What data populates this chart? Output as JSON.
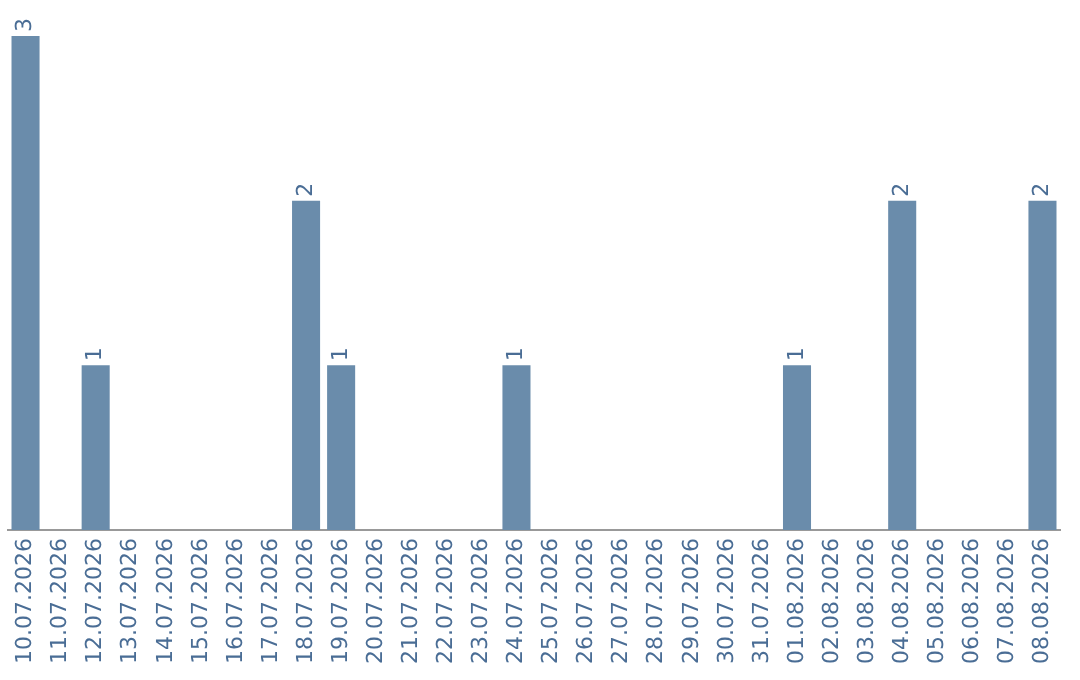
{
  "chart_data": {
    "type": "bar",
    "categories": [
      "10.07.2026",
      "11.07.2026",
      "12.07.2026",
      "13.07.2026",
      "14.07.2026",
      "15.07.2026",
      "16.07.2026",
      "17.07.2026",
      "18.07.2026",
      "19.07.2026",
      "20.07.2026",
      "21.07.2026",
      "22.07.2026",
      "23.07.2026",
      "24.07.2026",
      "25.07.2026",
      "26.07.2026",
      "27.07.2026",
      "28.07.2026",
      "29.07.2026",
      "30.07.2026",
      "31.07.2026",
      "01.08.2026",
      "02.08.2026",
      "03.08.2026",
      "04.08.2026",
      "05.08.2026",
      "06.08.2026",
      "07.08.2026",
      "08.08.2026"
    ],
    "values": [
      3,
      0,
      1,
      0,
      0,
      0,
      0,
      0,
      2,
      1,
      0,
      0,
      0,
      0,
      1,
      0,
      0,
      0,
      0,
      0,
      0,
      0,
      1,
      0,
      0,
      2,
      0,
      0,
      0,
      2
    ],
    "value_labels": [
      "3",
      null,
      "1",
      null,
      null,
      null,
      null,
      null,
      "2",
      "1",
      null,
      null,
      null,
      null,
      "1",
      null,
      null,
      null,
      null,
      null,
      null,
      null,
      "1",
      null,
      null,
      "2",
      null,
      null,
      null,
      "2"
    ],
    "color": "#6a8cab",
    "ylim": [
      0,
      3
    ],
    "tick_labels": "x",
    "grid": false,
    "legend": false
  }
}
